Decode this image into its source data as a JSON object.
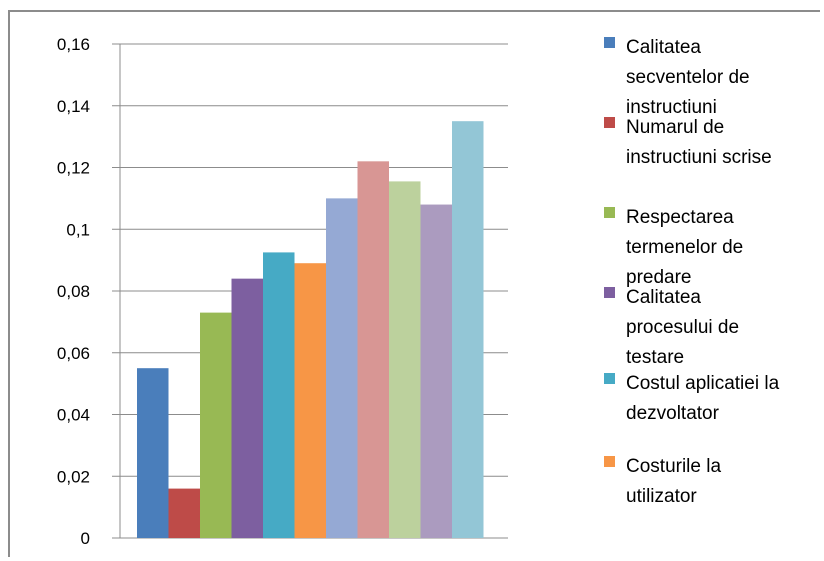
{
  "chart_data": {
    "type": "bar",
    "title": "",
    "xlabel": "",
    "ylabel": "",
    "ylim": [
      0,
      0.16
    ],
    "y_ticks": [
      "0",
      "0,02",
      "0,04",
      "0,06",
      "0,08",
      "0,1",
      "0,12",
      "0,14",
      "0,16"
    ],
    "grid": "horizontal",
    "legend_position": "right",
    "series": [
      {
        "name": "Calitatea secventelor de instructiuni",
        "value": 0.055,
        "color": "#4a7ebb"
      },
      {
        "name": "Numarul de instructiuni scrise",
        "value": 0.016,
        "color": "#be4b48"
      },
      {
        "name": "Respectarea termenelor de predare",
        "value": 0.073,
        "color": "#98b954"
      },
      {
        "name": "Calitatea procesului de testare",
        "value": 0.084,
        "color": "#7d5fa0"
      },
      {
        "name": "Costul aplicatiei la dezvoltator",
        "value": 0.0925,
        "color": "#46aac5"
      },
      {
        "name": "Costurile la utilizator",
        "value": 0.089,
        "color": "#f79646"
      },
      {
        "name": "",
        "value": 0.11,
        "color": "#95a9d4"
      },
      {
        "name": "",
        "value": 0.122,
        "color": "#d89694"
      },
      {
        "name": "",
        "value": 0.1155,
        "color": "#bcd19d"
      },
      {
        "name": "",
        "value": 0.108,
        "color": "#ab9bbf"
      },
      {
        "name": "",
        "value": 0.135,
        "color": "#93c6d6"
      }
    ],
    "legend": [
      {
        "lines": [
          "Calitatea",
          "secventelor de",
          "instructiuni"
        ],
        "color": "#4a7ebb"
      },
      {
        "lines": [
          "Numarul de",
          "instructiuni scrise"
        ],
        "color": "#be4b48"
      },
      {
        "lines": [
          "Respectarea",
          "termenelor de",
          "predare"
        ],
        "color": "#98b954"
      },
      {
        "lines": [
          "Calitatea",
          "procesului de",
          "testare"
        ],
        "color": "#7d5fa0"
      },
      {
        "lines": [
          "Costul aplicatiei la",
          "dezvoltator"
        ],
        "color": "#46aac5"
      },
      {
        "lines": [
          "Costurile la",
          "utilizator"
        ],
        "color": "#f79646"
      }
    ]
  }
}
